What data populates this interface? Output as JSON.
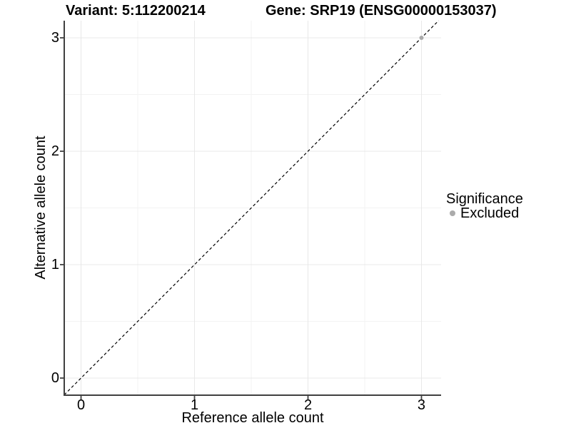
{
  "header": {
    "variant_title": "Variant: 5:112200214",
    "gene_title": "Gene: SRP19 (ENSG00000153037)"
  },
  "chart_data": {
    "type": "scatter",
    "title_left": "Variant: 5:112200214",
    "title_right": "Gene: SRP19 (ENSG00000153037)",
    "xlabel": "Reference allele count",
    "ylabel": "Alternative allele count",
    "xlim": [
      -0.148,
      3.173
    ],
    "ylim": [
      -0.151,
      3.151
    ],
    "x_ticks": [
      0,
      1,
      2,
      3
    ],
    "y_ticks": [
      0,
      1,
      2,
      3
    ],
    "x_minor_ticks": [
      0.5,
      1.5,
      2.5
    ],
    "y_minor_ticks": [
      0.5,
      1.5,
      2.5
    ],
    "grid": "major and minor gridlines, white panel",
    "identity_line": {
      "equation": "y = x",
      "style": "dashed",
      "color": "#000000"
    },
    "series": [
      {
        "name": "Excluded",
        "color": "#ababab",
        "points": [
          [
            3,
            3
          ]
        ]
      }
    ],
    "legend": {
      "title": "Significance",
      "position": "right",
      "items": [
        {
          "label": "Excluded",
          "color": "#ababab"
        }
      ]
    }
  },
  "colors": {
    "background": "#ffffff",
    "grid_major": "#e8e8e8",
    "grid_minor": "#f3f3f3",
    "axis_line": "#404040",
    "tick_mark": "#404040",
    "text": "#000000",
    "point": "#ababab"
  }
}
